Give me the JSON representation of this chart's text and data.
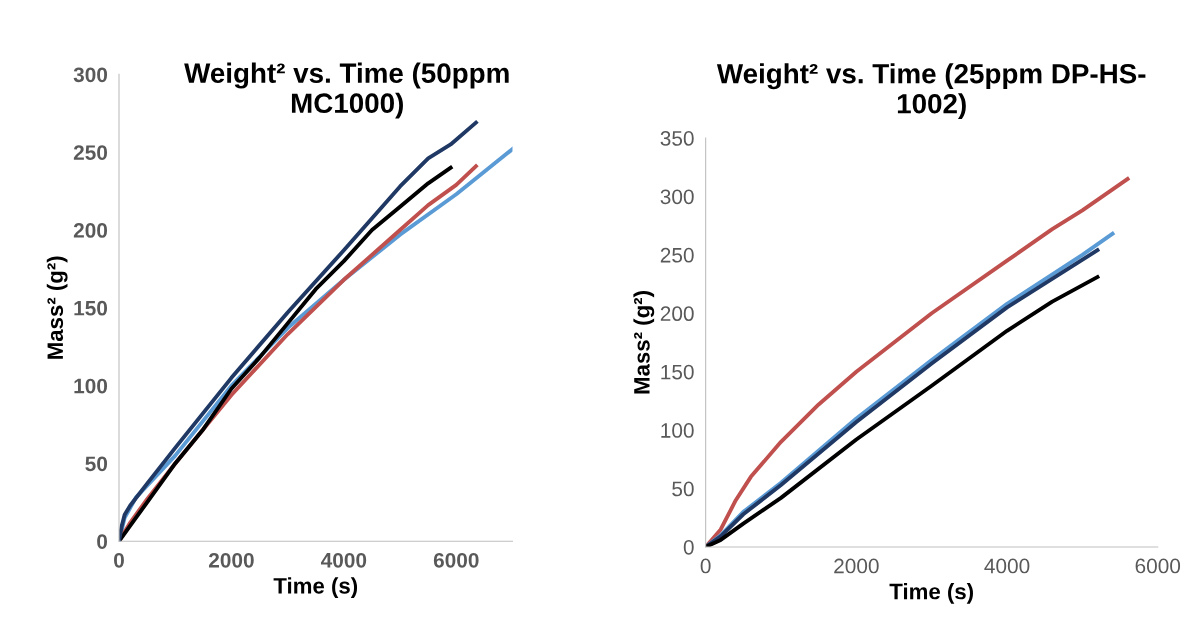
{
  "chart_data": [
    {
      "type": "line",
      "title": "Weight² vs. Time (50ppm MC1000)",
      "xlabel": "Time (s)",
      "ylabel": "Mass² (g²)",
      "xlim": [
        0,
        7000
      ],
      "xticks": [
        0,
        2000,
        4000,
        6000
      ],
      "ylim": [
        0,
        300
      ],
      "yticks": [
        0,
        50,
        100,
        150,
        200,
        250,
        300
      ],
      "grid": false,
      "legend": false,
      "marker": "none",
      "line_style": "solid",
      "series": [
        {
          "color": "#5b9bd5",
          "x": [
            0,
            100,
            300,
            1000,
            2000,
            3000,
            4000,
            5000,
            6000,
            7000
          ],
          "values": [
            0,
            15,
            28,
            55,
            100,
            137,
            168,
            197,
            223,
            252
          ]
        },
        {
          "color": "#c0504d",
          "x": [
            0,
            200,
            500,
            1000,
            2000,
            3000,
            4000,
            5000,
            5500,
            6000,
            6350
          ],
          "values": [
            0,
            12,
            27,
            50,
            94,
            133,
            168,
            200,
            216,
            229,
            241
          ]
        },
        {
          "color": "#000000",
          "x": [
            0,
            200,
            500,
            1000,
            1500,
            2000,
            2500,
            3000,
            3500,
            4000,
            4500,
            5000,
            5500,
            5900
          ],
          "values": [
            0,
            10,
            25,
            50,
            72,
            98,
            118,
            140,
            162,
            180,
            200,
            215,
            230,
            240
          ]
        },
        {
          "color": "#1f3864",
          "x": [
            0,
            50,
            100,
            200,
            500,
            1000,
            2000,
            3000,
            4000,
            5000,
            5500,
            5900,
            6350
          ],
          "values": [
            0,
            10,
            17,
            23,
            37,
            60,
            105,
            147,
            187,
            228,
            246,
            255,
            269
          ]
        }
      ]
    },
    {
      "type": "line",
      "title": "Weight² vs. Time (25ppm DP-HS-1002)",
      "xlabel": "Time (s)",
      "ylabel": "Mass² (g²)",
      "xlim": [
        0,
        6000
      ],
      "xticks": [
        0,
        2000,
        4000,
        6000
      ],
      "ylim": [
        0,
        350
      ],
      "yticks": [
        0,
        50,
        100,
        150,
        200,
        250,
        300,
        350
      ],
      "grid": false,
      "legend": false,
      "marker": "none",
      "line_style": "solid",
      "series": [
        {
          "color": "#c0504d",
          "x": [
            0,
            200,
            400,
            600,
            1000,
            1500,
            2000,
            3000,
            4000,
            4600,
            5000,
            5600
          ],
          "values": [
            0,
            15,
            40,
            60,
            90,
            122,
            150,
            200,
            245,
            272,
            288,
            315
          ]
        },
        {
          "color": "#5b9bd5",
          "x": [
            0,
            200,
            500,
            1000,
            2000,
            3000,
            4000,
            5000,
            5400
          ],
          "values": [
            0,
            10,
            30,
            55,
            110,
            160,
            208,
            250,
            268
          ]
        },
        {
          "color": "#1f3864",
          "x": [
            0,
            200,
            500,
            1000,
            2000,
            3000,
            4000,
            5200
          ],
          "values": [
            0,
            9,
            28,
            53,
            107,
            157,
            205,
            254
          ]
        },
        {
          "color": "#000000",
          "x": [
            0,
            200,
            500,
            1000,
            2000,
            3000,
            4000,
            4600,
            5200
          ],
          "values": [
            0,
            6,
            20,
            42,
            92,
            138,
            185,
            210,
            231
          ]
        }
      ]
    }
  ]
}
